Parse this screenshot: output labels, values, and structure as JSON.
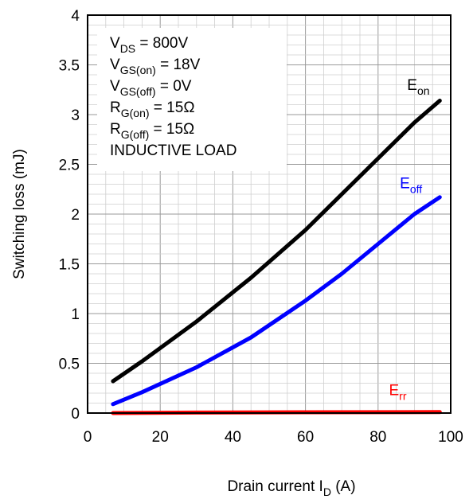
{
  "chart_data": {
    "type": "line",
    "title": "",
    "xlabel": {
      "main": "Drain current I",
      "sub": "D",
      "suffix": " (A)"
    },
    "ylabel": "Switching loss (mJ)",
    "xlim": [
      0,
      100
    ],
    "ylim": [
      0,
      4
    ],
    "x_ticks": [
      "0",
      "20",
      "40",
      "60",
      "80",
      "100"
    ],
    "y_ticks": [
      "0",
      "0.5",
      "1",
      "1.5",
      "2",
      "2.5",
      "3",
      "3.5",
      "4"
    ],
    "grid": true,
    "conditions": [
      {
        "main": "V",
        "sub": "DS",
        "suffix": " = 800V"
      },
      {
        "main": "V",
        "sub": "GS(on)",
        "suffix": " = 18V"
      },
      {
        "main": "V",
        "sub": "GS(off)",
        "suffix": " = 0V"
      },
      {
        "main": "R",
        "sub": "G(on)",
        "suffix": " = 15Ω"
      },
      {
        "main": "R",
        "sub": "G(off)",
        "suffix": " = 15Ω"
      },
      {
        "main": "INDUCTIVE LOAD",
        "sub": "",
        "suffix": ""
      }
    ],
    "series": [
      {
        "name": "E",
        "name_sub": "on",
        "color": "#000000",
        "x": [
          7,
          15,
          30,
          45,
          60,
          70,
          80,
          90,
          97
        ],
        "y": [
          0.32,
          0.52,
          0.92,
          1.36,
          1.84,
          2.2,
          2.56,
          2.92,
          3.14
        ],
        "label_pos": [
          88,
          3.25
        ]
      },
      {
        "name": "E",
        "name_sub": "off",
        "color": "#0000ff",
        "x": [
          7,
          15,
          30,
          45,
          60,
          70,
          80,
          90,
          97
        ],
        "y": [
          0.09,
          0.21,
          0.46,
          0.76,
          1.13,
          1.4,
          1.7,
          2.0,
          2.17
        ],
        "label_pos": [
          86,
          2.26
        ]
      },
      {
        "name": "E",
        "name_sub": "rr",
        "color": "#ff0000",
        "x": [
          7,
          30,
          60,
          97
        ],
        "y": [
          0.0,
          0.005,
          0.008,
          0.01
        ],
        "label_pos": [
          83,
          0.18
        ]
      }
    ]
  }
}
